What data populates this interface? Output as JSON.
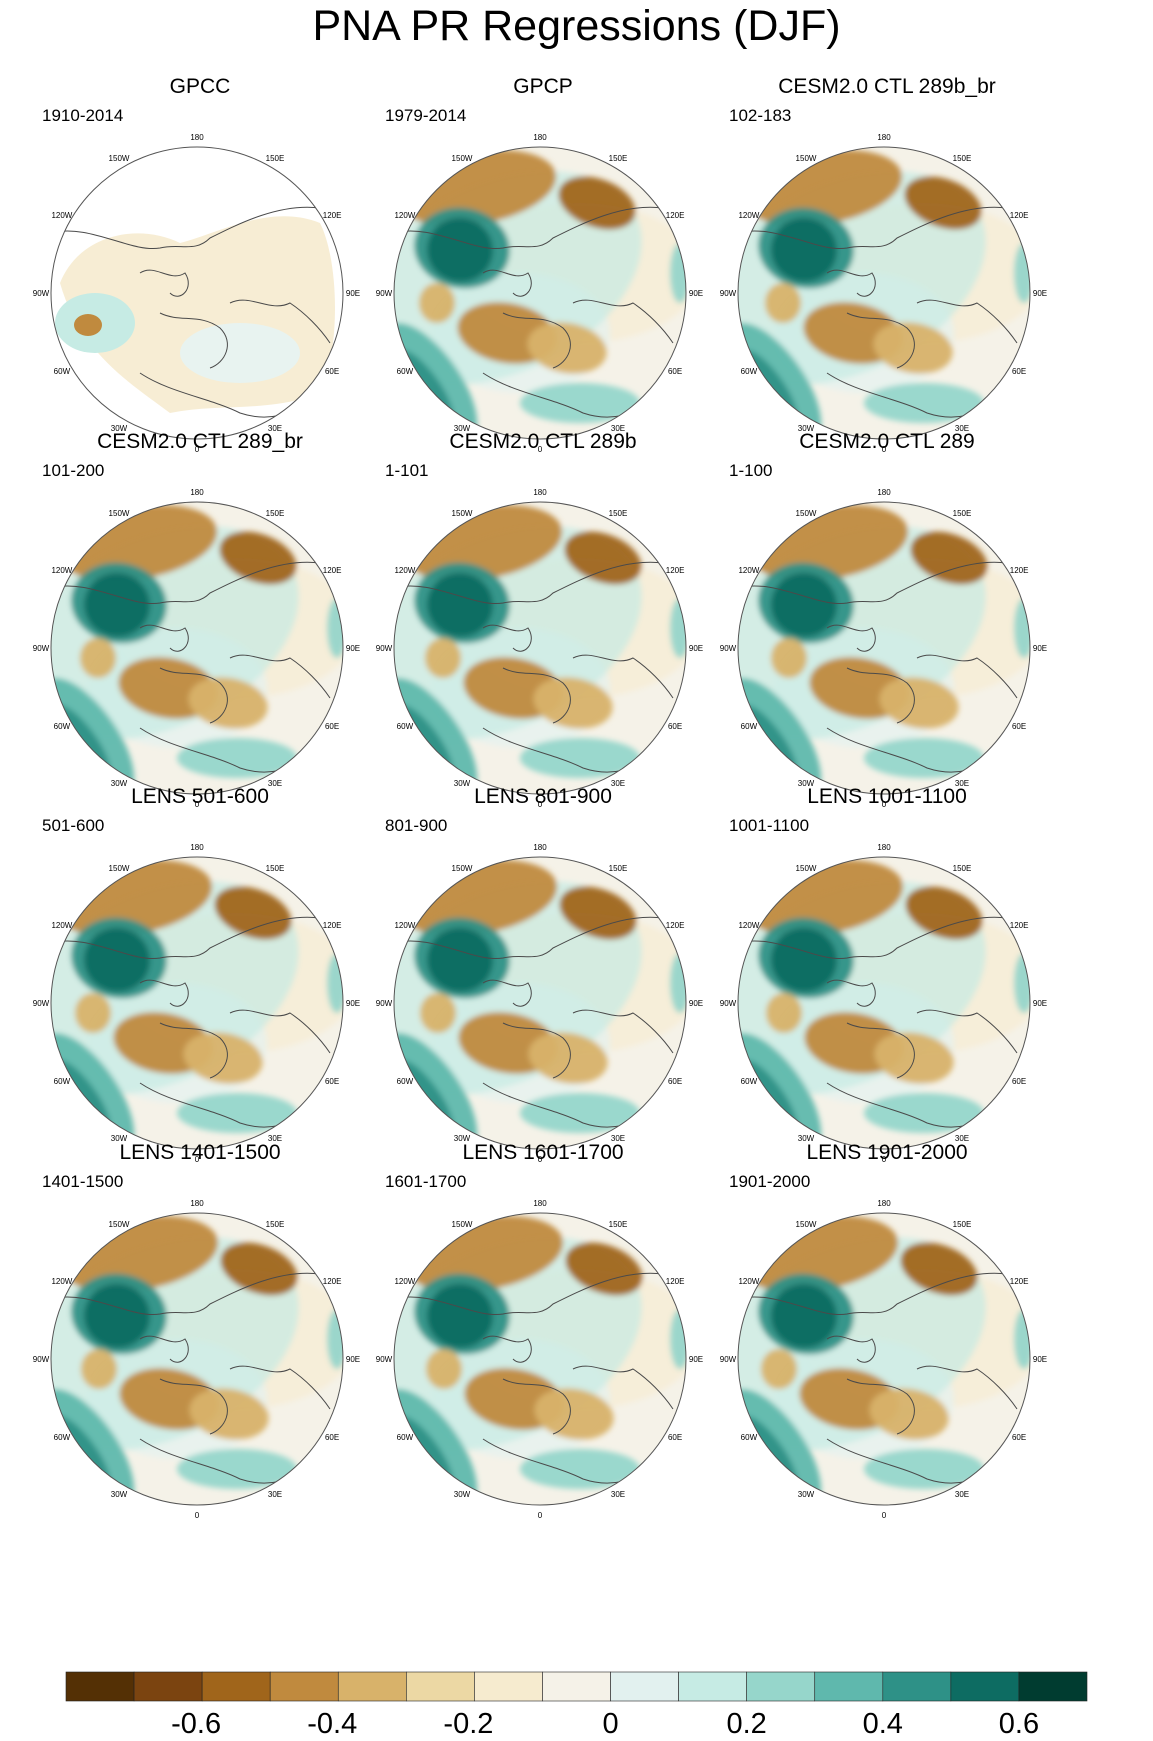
{
  "figure": {
    "title": "PNA PR Regressions (DJF)",
    "lon_labels": [
      "180",
      "150E",
      "120E",
      "90E",
      "60E",
      "30E",
      "0",
      "30W",
      "60W",
      "90W",
      "120W",
      "150W"
    ]
  },
  "panels": [
    {
      "title": "GPCC",
      "years": "1910-2014"
    },
    {
      "title": "GPCP",
      "years": "1979-2014"
    },
    {
      "title": "CESM2.0 CTL 289b_br",
      "years": "102-183"
    },
    {
      "title": "CESM2.0 CTL 289_br",
      "years": "101-200"
    },
    {
      "title": "CESM2.0 CTL 289b",
      "years": "1-101"
    },
    {
      "title": "CESM2.0 CTL 289",
      "years": "1-100"
    },
    {
      "title": "LENS 501-600",
      "years": "501-600"
    },
    {
      "title": "LENS 801-900",
      "years": "801-900"
    },
    {
      "title": "LENS 1001-1100",
      "years": "1001-1100"
    },
    {
      "title": "LENS 1401-1500",
      "years": "1401-1500"
    },
    {
      "title": "LENS 1601-1700",
      "years": "1601-1700"
    },
    {
      "title": "LENS 1901-2000",
      "years": "1901-2000"
    }
  ],
  "colorbar": {
    "colors": [
      "#543005",
      "#7b4410",
      "#a0651b",
      "#c08a3e",
      "#d8b26a",
      "#ecd8a4",
      "#f6ebcf",
      "#f5f2e8",
      "#e2f1ef",
      "#c6ebe4",
      "#96d6cb",
      "#5fb8ad",
      "#2e9187",
      "#0d6c62",
      "#003c30"
    ],
    "labels": [
      "-0.6",
      "-0.4",
      "-0.2",
      "0",
      "0.2",
      "0.4",
      "0.6"
    ]
  }
}
